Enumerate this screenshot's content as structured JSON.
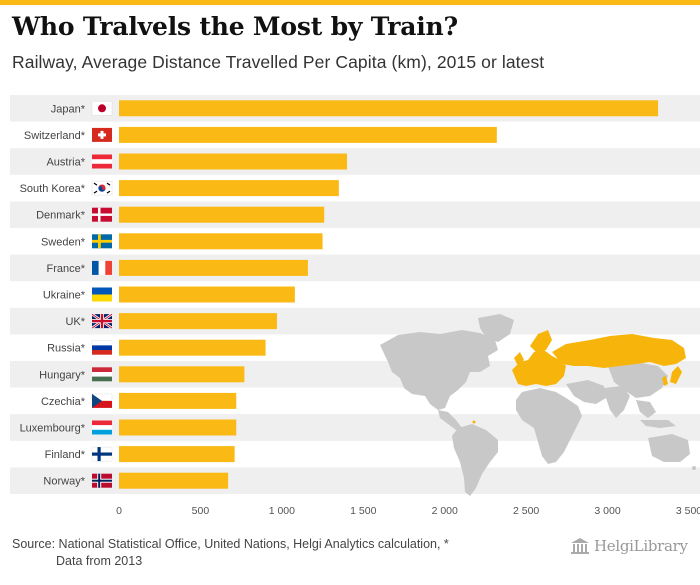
{
  "title": "Who Tralvels the Most by Train?",
  "subtitle": "Railway, Average Distance Travelled Per Capita (km), 2015 or latest",
  "source_line1": "Source: National Statistical Office, United Nations, Helgi Analytics calculation, *",
  "source_line2": "Data from 2013",
  "logo_text": "HelgiLibrary",
  "colors": {
    "bar": "#fab914",
    "band": "#efefef",
    "map_grey": "#c8c8c8",
    "map_highlight": "#f7b50c"
  },
  "chart_data": {
    "type": "bar",
    "orientation": "horizontal",
    "title": "Who Tralvels the Most by Train?",
    "subtitle": "Railway, Average Distance Travelled Per Capita (km), 2015 or latest",
    "xlabel": "",
    "ylabel": "",
    "xlim": [
      0,
      3500
    ],
    "xticks": [
      0,
      500,
      1000,
      1500,
      2000,
      2500,
      3000,
      3500
    ],
    "xtick_labels": [
      "0",
      "500",
      "1 000",
      "1 500",
      "2 000",
      "2 500",
      "3 000",
      "3 500"
    ],
    "categories": [
      "Japan*",
      "Switzerland*",
      "Austria*",
      "South Korea*",
      "Denmark*",
      "Sweden*",
      "France*",
      "Ukraine*",
      "UK*",
      "Russia*",
      "Hungary*",
      "Czechia*",
      "Luxembourg*",
      "Finland*",
      "Norway*"
    ],
    "flags": [
      "japan-flag",
      "switzerland-flag",
      "austria-flag",
      "south-korea-flag",
      "denmark-flag",
      "sweden-flag",
      "france-flag",
      "ukraine-flag",
      "uk-flag",
      "russia-flag",
      "hungary-flag",
      "czechia-flag",
      "luxembourg-flag",
      "finland-flag",
      "norway-flag"
    ],
    "values": [
      3310,
      2320,
      1400,
      1350,
      1260,
      1250,
      1160,
      1080,
      970,
      900,
      770,
      720,
      720,
      710,
      670
    ]
  }
}
